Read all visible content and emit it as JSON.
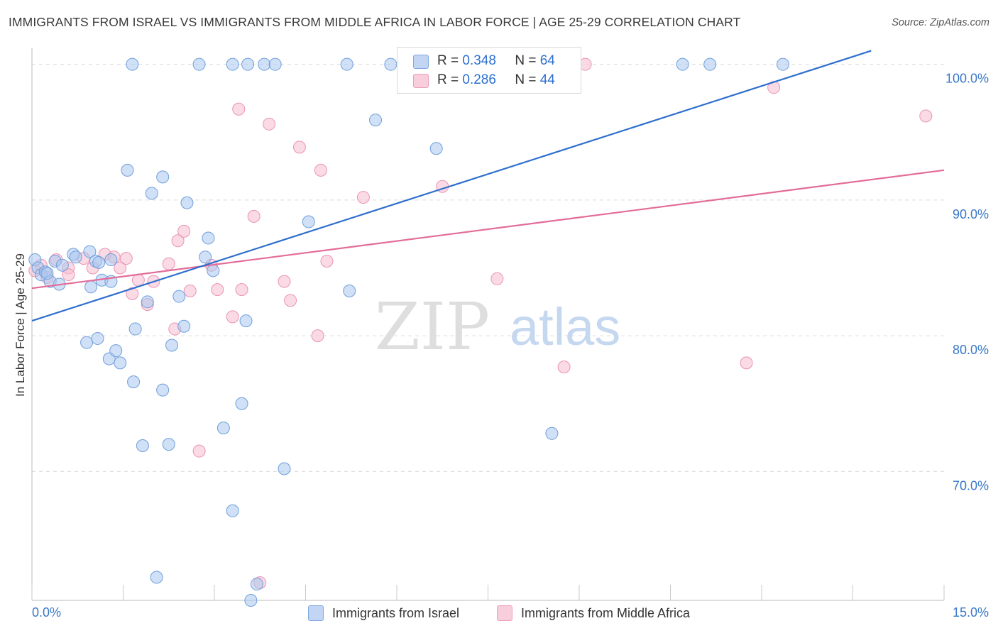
{
  "header": {
    "title": "IMMIGRANTS FROM ISRAEL VS IMMIGRANTS FROM MIDDLE AFRICA IN LABOR FORCE | AGE 25-29 CORRELATION CHART",
    "source": "Source: ZipAtlas.com"
  },
  "legend_stats": {
    "israel": {
      "r_label": "R =",
      "r_value": "0.348",
      "n_label": "N =",
      "n_value": "64"
    },
    "africa": {
      "r_label": "R =",
      "r_value": "0.286",
      "n_label": "N =",
      "n_value": "44"
    }
  },
  "legend": {
    "israel_label": "Immigrants from Israel",
    "africa_label": "Immigrants from Middle Africa"
  },
  "watermark": {
    "zip": "ZIP",
    "atlas": "atlas"
  },
  "colors": {
    "israel_fill": "#a9c6ee",
    "israel_stroke": "#6f9fdc",
    "israel_line": "#2e6fcd",
    "africa_fill": "#f6bdd0",
    "africa_stroke": "#eb93b1",
    "africa_line": "#e36b98",
    "axis_label": "#3a78c9",
    "grid": "#dcdcdc"
  },
  "chart_data": {
    "type": "scatter",
    "ylabel": "In Labor Force | Age 25-29",
    "xlim": [
      0,
      15
    ],
    "ylim": [
      60.5,
      101.5
    ],
    "x_tick_labels": [
      {
        "value": 0,
        "label": "0.0%"
      },
      {
        "value": 15,
        "label": "15.0%"
      }
    ],
    "y_tick_labels": [
      {
        "value": 70,
        "label": "70.0%"
      },
      {
        "value": 80,
        "label": "80.0%"
      },
      {
        "value": 90,
        "label": "90.0%"
      },
      {
        "value": 100,
        "label": "100.0%"
      }
    ],
    "gridlines_y": [
      70,
      80,
      90,
      100
    ],
    "series": [
      {
        "name": "Immigrants from Israel",
        "color": "#a9c6ee",
        "trend": {
          "x": [
            0,
            13.8
          ],
          "y": [
            81.1,
            101.0
          ]
        },
        "points": [
          [
            0.05,
            85.6
          ],
          [
            0.1,
            85.0
          ],
          [
            0.15,
            84.5
          ],
          [
            0.22,
            84.7
          ],
          [
            0.3,
            84.0
          ],
          [
            0.38,
            85.5
          ],
          [
            0.45,
            83.8
          ],
          [
            0.5,
            85.2
          ],
          [
            0.68,
            86.0
          ],
          [
            0.72,
            85.8
          ],
          [
            0.95,
            86.2
          ],
          [
            0.97,
            83.6
          ],
          [
            1.05,
            85.5
          ],
          [
            1.15,
            84.1
          ],
          [
            1.3,
            85.6
          ],
          [
            0.9,
            79.5
          ],
          [
            1.08,
            79.8
          ],
          [
            1.27,
            78.3
          ],
          [
            1.38,
            78.9
          ],
          [
            1.45,
            78.0
          ],
          [
            1.57,
            92.2
          ],
          [
            1.67,
            76.6
          ],
          [
            1.7,
            80.5
          ],
          [
            1.65,
            100.0
          ],
          [
            1.9,
            82.5
          ],
          [
            1.82,
            71.9
          ],
          [
            1.97,
            90.5
          ],
          [
            2.05,
            62.2
          ],
          [
            2.15,
            91.7
          ],
          [
            2.15,
            76.0
          ],
          [
            2.25,
            72.0
          ],
          [
            2.3,
            79.3
          ],
          [
            2.42,
            82.9
          ],
          [
            2.5,
            80.7
          ],
          [
            2.55,
            89.8
          ],
          [
            2.75,
            100.0
          ],
          [
            2.85,
            85.8
          ],
          [
            2.9,
            87.2
          ],
          [
            2.98,
            84.8
          ],
          [
            3.15,
            73.2
          ],
          [
            3.3,
            67.1
          ],
          [
            3.45,
            75.0
          ],
          [
            3.3,
            100.0
          ],
          [
            3.55,
            100.0
          ],
          [
            3.52,
            81.1
          ],
          [
            3.7,
            61.7
          ],
          [
            3.6,
            60.5
          ],
          [
            3.82,
            100.0
          ],
          [
            4.0,
            100.0
          ],
          [
            4.15,
            70.2
          ],
          [
            4.55,
            88.4
          ],
          [
            5.22,
            83.3
          ],
          [
            5.18,
            100.0
          ],
          [
            5.65,
            95.9
          ],
          [
            5.9,
            100.0
          ],
          [
            6.65,
            93.8
          ],
          [
            7.45,
            100.0
          ],
          [
            8.55,
            72.8
          ],
          [
            10.7,
            100.0
          ],
          [
            11.15,
            100.0
          ],
          [
            12.35,
            100.0
          ],
          [
            1.3,
            84.0
          ],
          [
            0.25,
            84.6
          ],
          [
            1.1,
            85.4
          ]
        ]
      },
      {
        "name": "Immigrants from Middle Africa",
        "color": "#f6bdd0",
        "trend": {
          "x": [
            0,
            15
          ],
          "y": [
            83.5,
            92.2
          ]
        },
        "points": [
          [
            0.05,
            84.8
          ],
          [
            0.15,
            85.2
          ],
          [
            0.25,
            84.3
          ],
          [
            0.4,
            85.6
          ],
          [
            0.6,
            85.0
          ],
          [
            0.6,
            84.5
          ],
          [
            0.85,
            85.7
          ],
          [
            1.0,
            85.0
          ],
          [
            1.2,
            86.0
          ],
          [
            1.35,
            85.8
          ],
          [
            1.45,
            85.0
          ],
          [
            1.55,
            85.7
          ],
          [
            1.65,
            83.1
          ],
          [
            1.75,
            84.1
          ],
          [
            1.9,
            82.3
          ],
          [
            2.0,
            84.0
          ],
          [
            2.25,
            85.3
          ],
          [
            2.35,
            80.5
          ],
          [
            2.4,
            87.0
          ],
          [
            2.5,
            87.7
          ],
          [
            2.6,
            83.3
          ],
          [
            2.75,
            71.5
          ],
          [
            2.95,
            85.2
          ],
          [
            3.05,
            83.4
          ],
          [
            3.3,
            81.4
          ],
          [
            3.4,
            96.7
          ],
          [
            3.45,
            83.4
          ],
          [
            3.65,
            88.8
          ],
          [
            3.75,
            61.8
          ],
          [
            3.9,
            95.6
          ],
          [
            4.15,
            84.0
          ],
          [
            4.25,
            82.6
          ],
          [
            4.4,
            93.9
          ],
          [
            4.7,
            80.0
          ],
          [
            4.75,
            92.2
          ],
          [
            4.85,
            85.5
          ],
          [
            5.45,
            90.2
          ],
          [
            6.75,
            91.0
          ],
          [
            7.65,
            84.2
          ],
          [
            8.75,
            77.7
          ],
          [
            9.1,
            100.0
          ],
          [
            11.75,
            78.0
          ],
          [
            12.2,
            98.3
          ],
          [
            14.7,
            96.2
          ]
        ]
      }
    ]
  }
}
